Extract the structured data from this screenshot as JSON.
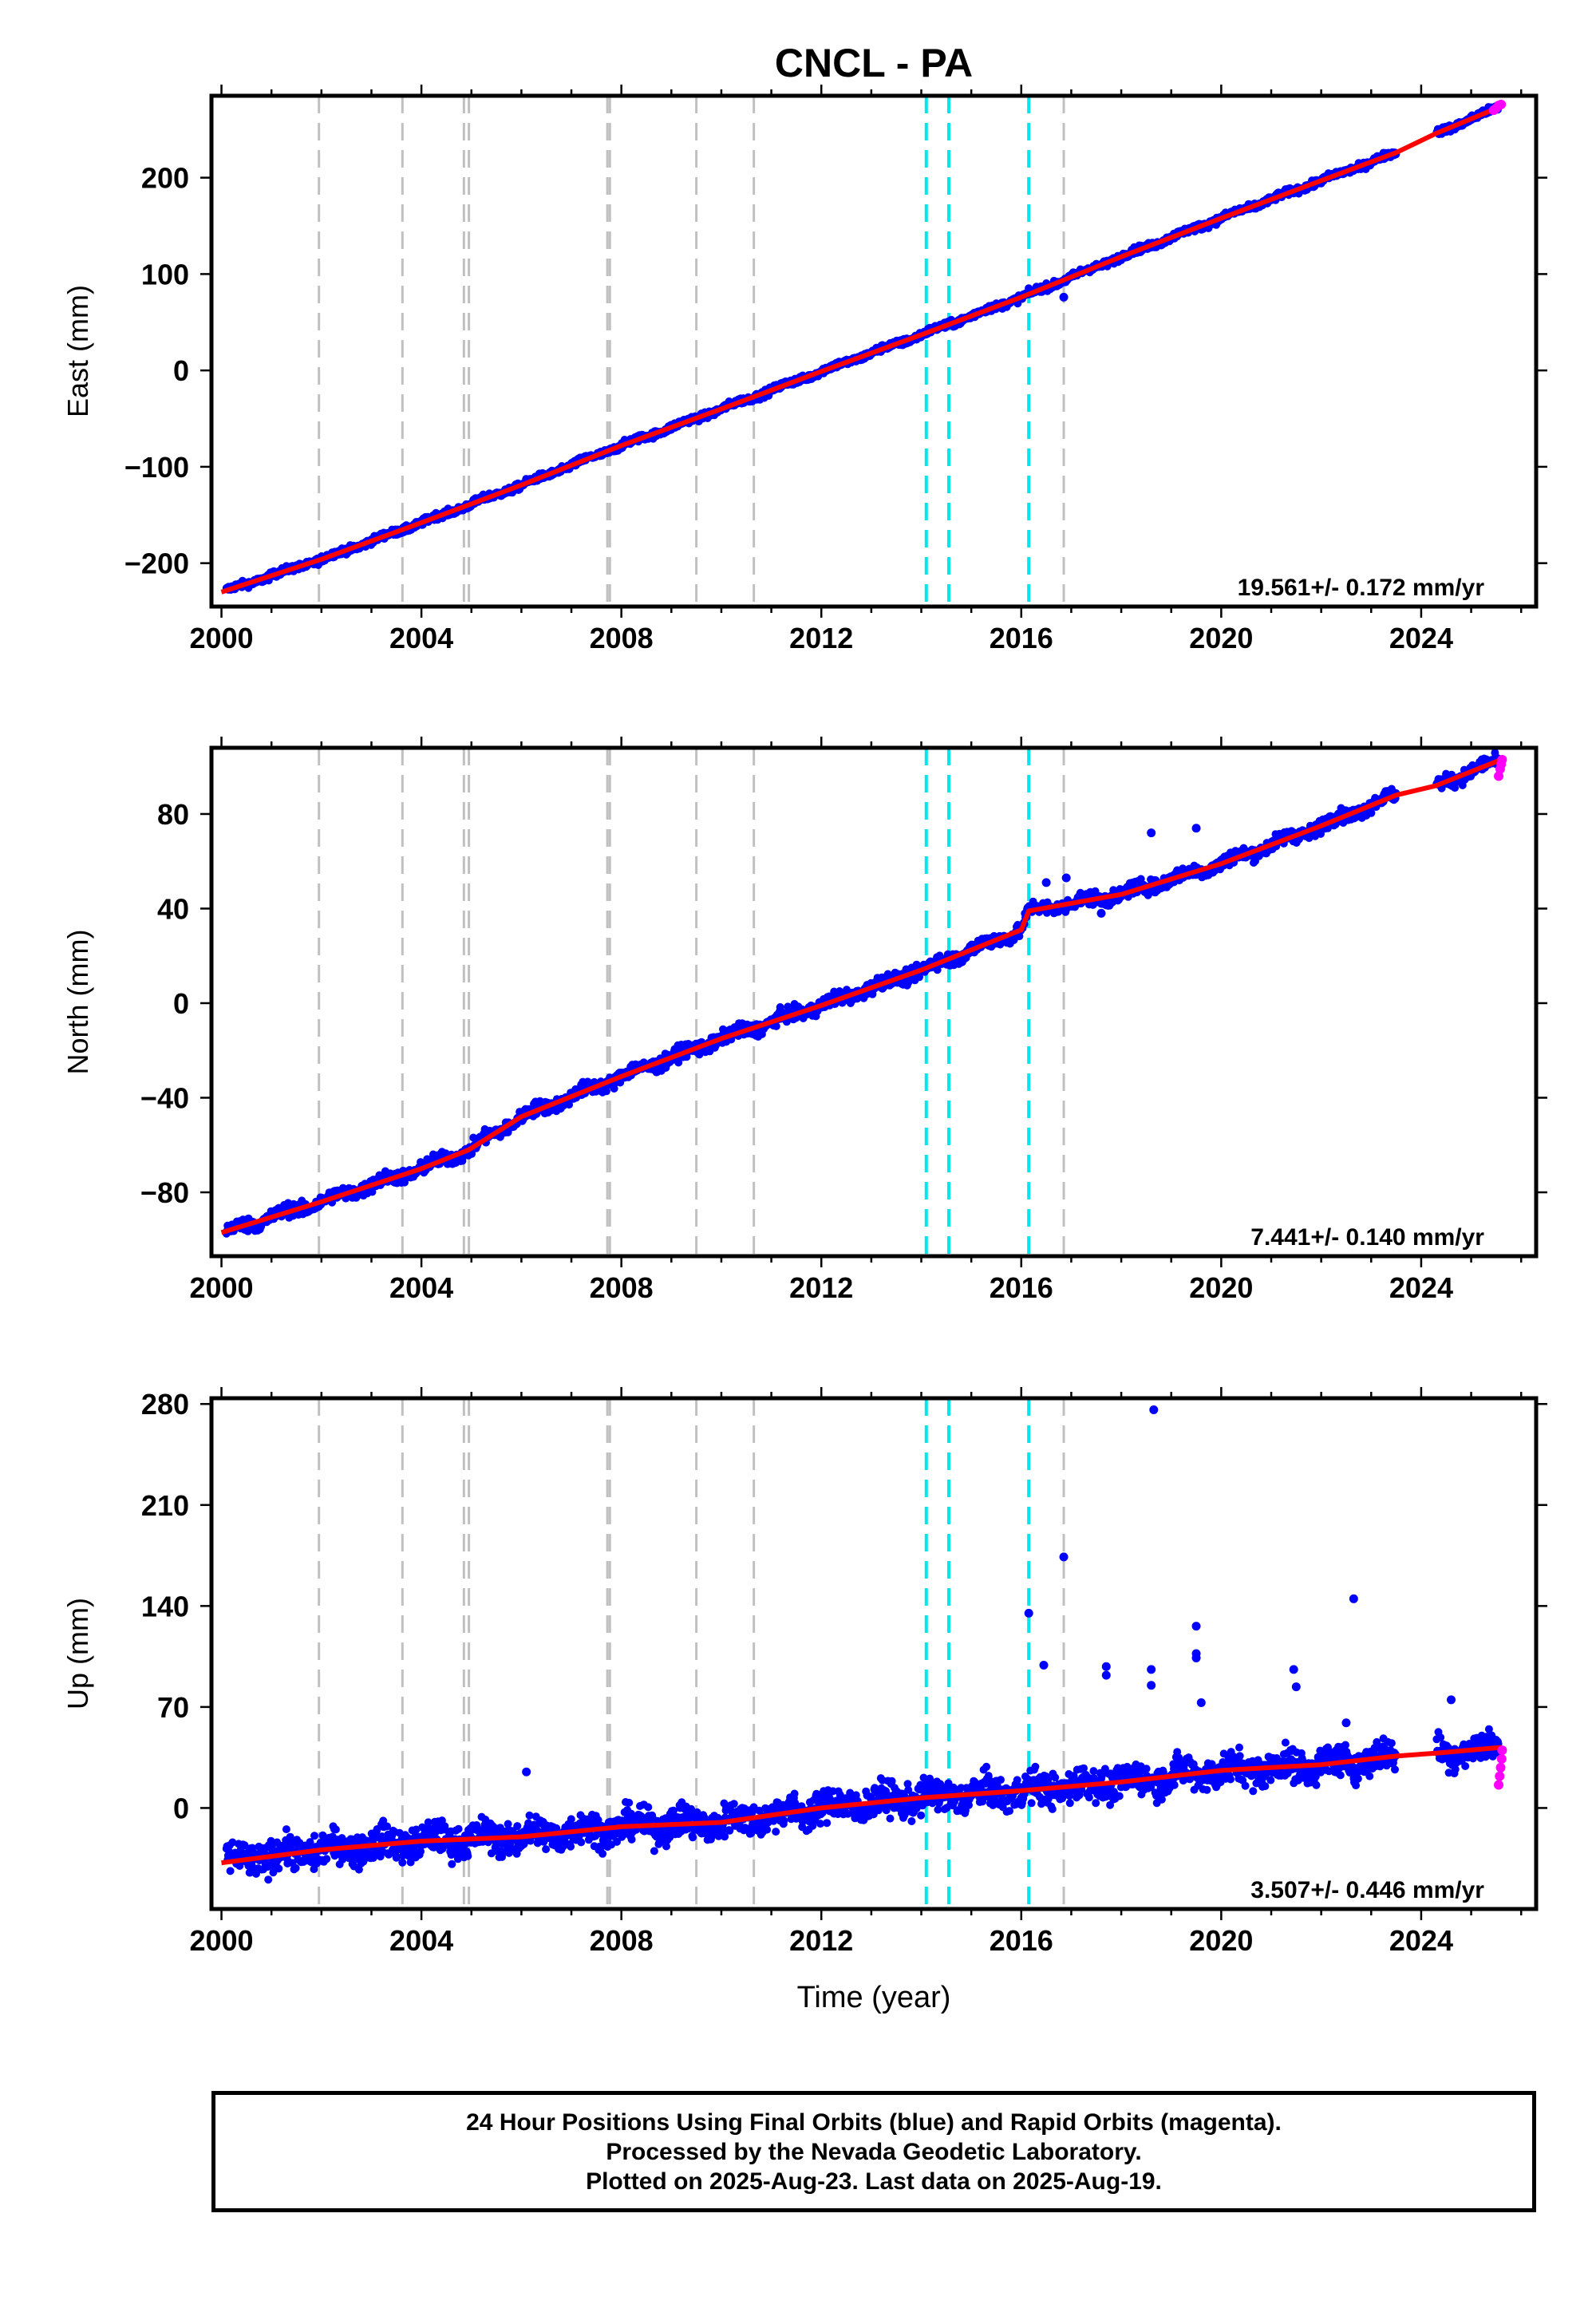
{
  "figure": {
    "title": "CNCL - PA",
    "xlabel": "Time (year)",
    "footer_lines": [
      "24 Hour Positions Using Final Orbits (blue) and Rapid Orbits (magenta).",
      "Processed by the Nevada Geodetic Laboratory.",
      "Plotted on 2025-Aug-23. Last data on 2025-Aug-19."
    ]
  },
  "colors": {
    "final_points": "#0000ff",
    "rapid_points": "#ff00ff",
    "model_line": "#ff0000",
    "event_gray": "#c0c0c0",
    "event_cyan": "#00e5ee"
  },
  "chart_data": [
    {
      "type": "scatter",
      "panel": "East",
      "ylabel": "East (mm)",
      "xlim": [
        1999.8,
        2026.3
      ],
      "ylim": [
        -245,
        285
      ],
      "xticks": [
        2000,
        2004,
        2008,
        2012,
        2016,
        2020,
        2024
      ],
      "yticks": [
        -200,
        -100,
        0,
        100,
        200
      ],
      "ytick_labels": [
        "−200",
        "−100",
        "0",
        "100",
        "200"
      ],
      "rate_label": "19.561+/- 0.172 mm/yr",
      "grid": false,
      "event_lines_gray": [
        2001.95,
        2003.62,
        2004.85,
        2004.95,
        2007.72,
        2007.77,
        2009.5,
        2010.65,
        2016.85
      ],
      "event_lines_cyan": [
        2014.1,
        2014.55,
        2016.15
      ],
      "series": [
        {
          "name": "Final Orbits",
          "kind": "daily_positions",
          "x_range": [
            2000.1,
            2025.55
          ],
          "data_gap": [
            2023.5,
            2024.3
          ],
          "trend_mm_per_yr": 19.561,
          "scatter_mm": 2.5,
          "outliers": [
            [
              2016.85,
              76
            ]
          ]
        },
        {
          "name": "Rapid Orbits",
          "kind": "daily_positions",
          "x": [
            2025.45,
            2025.5,
            2025.55,
            2025.6
          ],
          "y": [
            270,
            272,
            275,
            276
          ]
        },
        {
          "name": "Model",
          "kind": "line",
          "x": [
            2000.0,
            2002.0,
            2004.0,
            2006.0,
            2008.0,
            2010.0,
            2012.0,
            2014.0,
            2016.0,
            2018.0,
            2020.0,
            2022.0,
            2023.5,
            2024.3,
            2025.6
          ],
          "y": [
            -230,
            -196,
            -158,
            -119,
            -78,
            -40,
            -1,
            37,
            76,
            118,
            158,
            197,
            226,
            246,
            274
          ]
        }
      ]
    },
    {
      "type": "scatter",
      "panel": "North",
      "ylabel": "North (mm)",
      "xlim": [
        1999.8,
        2026.3
      ],
      "ylim": [
        -107,
        108
      ],
      "xticks": [
        2000,
        2004,
        2008,
        2012,
        2016,
        2020,
        2024
      ],
      "yticks": [
        -80,
        -40,
        0,
        40,
        80
      ],
      "ytick_labels": [
        "−80",
        "−40",
        "0",
        "40",
        "80"
      ],
      "rate_label": "7.441+/- 0.140 mm/yr",
      "grid": false,
      "event_lines_gray": [
        2001.95,
        2003.62,
        2004.85,
        2004.95,
        2007.72,
        2007.77,
        2009.5,
        2010.65,
        2016.85
      ],
      "event_lines_cyan": [
        2014.1,
        2014.55,
        2016.15
      ],
      "series": [
        {
          "name": "Final Orbits",
          "kind": "daily_positions",
          "x_range": [
            2000.1,
            2025.55
          ],
          "data_gap": [
            2023.5,
            2024.3
          ],
          "trend_mm_per_yr": 7.441,
          "scatter_mm": 2.0,
          "outliers": [
            [
              2016.5,
              51
            ],
            [
              2016.9,
              53
            ],
            [
              2017.6,
              38
            ],
            [
              2018.6,
              72
            ],
            [
              2019.5,
              74
            ],
            [
              2017.3,
              46
            ]
          ]
        },
        {
          "name": "Rapid Orbits",
          "kind": "daily_positions",
          "x": [
            2025.55,
            2025.58,
            2025.6,
            2025.62
          ],
          "y": [
            96,
            99,
            101,
            103
          ]
        },
        {
          "name": "Model",
          "kind": "line",
          "x": [
            2000.0,
            2002.0,
            2004.0,
            2004.95,
            2006.0,
            2008.0,
            2010.0,
            2012.0,
            2014.0,
            2016.0,
            2016.15,
            2018.0,
            2020.0,
            2022.0,
            2023.5,
            2024.3,
            2025.6
          ],
          "y": [
            -97,
            -84,
            -70,
            -62,
            -48,
            -31,
            -15,
            -1,
            14,
            31,
            39,
            46,
            59,
            75,
            88,
            92,
            103
          ]
        }
      ]
    },
    {
      "type": "scatter",
      "panel": "Up",
      "ylabel": "Up (mm)",
      "xlim": [
        1999.8,
        2026.3
      ],
      "ylim": [
        -70,
        284
      ],
      "xticks": [
        2000,
        2004,
        2008,
        2012,
        2016,
        2020,
        2024
      ],
      "yticks": [
        0,
        70,
        140,
        210,
        280
      ],
      "ytick_labels": [
        "0",
        "70",
        "140",
        "210",
        "280"
      ],
      "rate_label": "3.507+/- 0.446 mm/yr",
      "grid": false,
      "event_lines_gray": [
        2001.95,
        2003.62,
        2004.85,
        2004.95,
        2007.72,
        2007.77,
        2009.5,
        2010.65,
        2016.85
      ],
      "event_lines_cyan": [
        2014.1,
        2014.55,
        2016.15
      ],
      "series": [
        {
          "name": "Final Orbits",
          "kind": "daily_positions",
          "x_range": [
            2000.1,
            2025.55
          ],
          "data_gap": [
            2023.5,
            2024.3
          ],
          "trend_mm_per_yr": 3.507,
          "scatter_mm": 8.0,
          "outliers": [
            [
              2006.1,
              25
            ],
            [
              2016.15,
              135
            ],
            [
              2016.45,
              99
            ],
            [
              2016.85,
              174
            ],
            [
              2017.7,
              92
            ],
            [
              2017.7,
              98
            ],
            [
              2018.65,
              276
            ],
            [
              2018.6,
              96
            ],
            [
              2018.6,
              85
            ],
            [
              2019.5,
              126
            ],
            [
              2019.5,
              107
            ],
            [
              2019.5,
              104
            ],
            [
              2019.6,
              73
            ],
            [
              2021.45,
              96
            ],
            [
              2021.5,
              84
            ],
            [
              2022.65,
              145
            ],
            [
              2022.5,
              59
            ],
            [
              2024.6,
              75
            ]
          ]
        },
        {
          "name": "Rapid Orbits",
          "kind": "daily_positions",
          "x": [
            2025.55,
            2025.57,
            2025.59,
            2025.61,
            2025.62
          ],
          "y": [
            16,
            22,
            28,
            34,
            40
          ]
        },
        {
          "name": "Model",
          "kind": "line",
          "x": [
            2000.0,
            2002.0,
            2004.0,
            2006.0,
            2008.0,
            2010.0,
            2012.0,
            2014.0,
            2016.0,
            2018.0,
            2020.0,
            2022.0,
            2023.5,
            2024.3,
            2025.6
          ],
          "y": [
            -38,
            -29,
            -23,
            -20,
            -13,
            -10,
            0,
            7,
            12,
            18,
            26,
            30,
            36,
            38,
            42
          ]
        }
      ]
    }
  ]
}
